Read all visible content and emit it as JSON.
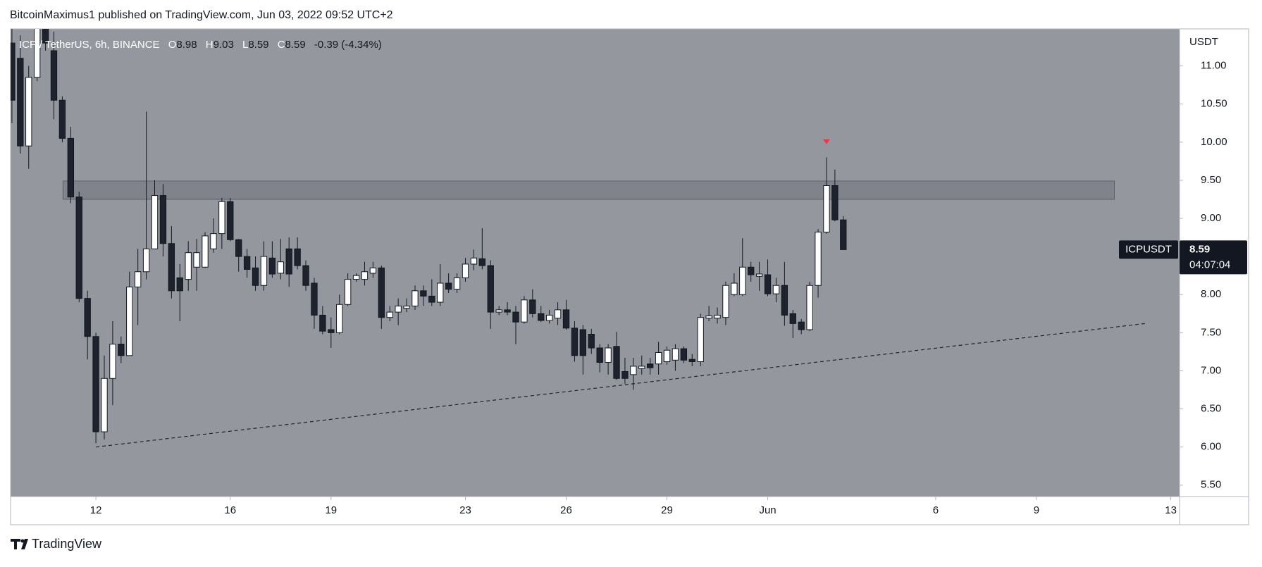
{
  "chart_data": {
    "type": "candlestick",
    "header": "BitcoinMaximus1 published on TradingView.com, Jun 03, 2022 09:52 UTC+2",
    "legend": {
      "symbol": "ICP / TetherUS, 6h, BINANCE",
      "items": [
        {
          "label": "O",
          "value": 8.98
        },
        {
          "label": "H",
          "value": 9.03
        },
        {
          "label": "L",
          "value": 8.59
        },
        {
          "label": "C",
          "value": 8.59
        }
      ],
      "change": "-0.39 (-4.34%)"
    },
    "y_axis_label": "USDT",
    "last_price": {
      "symbol": "ICPUSDT",
      "value": 8.59,
      "countdown": "04:07:04"
    },
    "footer": "TradingView",
    "up_color": "#ffffff",
    "down_color": "#1e222d",
    "x": [
      9.5,
      9.75,
      10,
      10.25,
      10.5,
      10.75,
      11,
      11.25,
      11.5,
      11.75,
      12,
      12.25,
      12.5,
      12.75,
      13,
      13.25,
      13.5,
      13.75,
      14,
      14.25,
      14.5,
      14.75,
      15,
      15.25,
      15.5,
      15.75,
      16,
      16.25,
      16.5,
      16.75,
      17,
      17.25,
      17.5,
      17.75,
      18,
      18.25,
      18.5,
      18.75,
      19,
      19.25,
      19.5,
      19.75,
      20,
      20.25,
      20.5,
      20.75,
      21,
      21.25,
      21.5,
      21.75,
      22,
      22.25,
      22.5,
      22.75,
      23,
      23.25,
      23.5,
      23.75,
      24,
      24.25,
      24.5,
      24.75,
      25,
      25.25,
      25.5,
      25.75,
      26,
      26.25,
      26.5,
      26.75,
      27,
      27.25,
      27.5,
      27.75,
      28,
      28.25,
      28.5,
      28.75,
      29,
      29.25,
      29.5,
      29.75,
      30,
      30.25,
      30.5,
      30.75,
      31,
      31.25,
      31.5,
      31.75,
      32,
      32.25,
      32.5,
      32.75,
      33,
      33.25,
      33.5,
      33.75,
      34,
      34.25
    ],
    "open": [
      11.3,
      11.1,
      9.95,
      10.85,
      11.6,
      11.2,
      10.55,
      10.05,
      9.28,
      7.95,
      7.45,
      6.2,
      6.9,
      7.35,
      7.2,
      8.1,
      8.3,
      8.6,
      9.3,
      8.67,
      8.22,
      8.2,
      8.36,
      8.36,
      8.6,
      8.8,
      9.22,
      8.72,
      8.5,
      8.35,
      8.12,
      8.48,
      8.28,
      8.6,
      8.6,
      8.38,
      8.15,
      7.73,
      7.54,
      7.5,
      7.87,
      8.2,
      8.2,
      8.28,
      8.35,
      7.7,
      7.77,
      7.82,
      7.85,
      8.05,
      7.98,
      7.9,
      8.15,
      8.07,
      8.22,
      8.4,
      8.47,
      8.38,
      7.77,
      7.8,
      7.77,
      7.64,
      7.93,
      7.75,
      7.66,
      7.69,
      7.8,
      7.56,
      7.54,
      7.48,
      7.3,
      7.11,
      7.32,
      6.99,
      6.95,
      7.03,
      7.09,
      7.09,
      7.12,
      7.14,
      7.29,
      7.15,
      7.12,
      7.69,
      7.69,
      7.7,
      8.0,
      8.0,
      8.36,
      8.24,
      8.26,
      8.01,
      8.12,
      7.75,
      7.64,
      7.54,
      8.12,
      8.82,
      9.43,
      8.98
    ],
    "high": [
      11.6,
      11.4,
      11.0,
      11.7,
      11.8,
      11.45,
      10.6,
      10.2,
      9.35,
      8.05,
      7.5,
      7.2,
      7.65,
      7.45,
      8.3,
      8.6,
      10.4,
      9.5,
      9.45,
      8.9,
      8.4,
      8.7,
      8.73,
      8.82,
      9.0,
      9.27,
      9.27,
      8.73,
      8.6,
      8.5,
      8.7,
      8.7,
      8.73,
      8.75,
      8.75,
      8.45,
      8.22,
      7.85,
      7.7,
      8.0,
      8.28,
      8.28,
      8.43,
      8.43,
      8.38,
      7.85,
      7.95,
      7.95,
      8.12,
      8.12,
      8.2,
      8.4,
      8.28,
      8.28,
      8.48,
      8.59,
      8.87,
      8.45,
      7.85,
      7.9,
      7.85,
      7.98,
      8.07,
      7.85,
      7.8,
      7.9,
      7.93,
      7.65,
      7.6,
      7.55,
      7.35,
      7.35,
      7.51,
      7.17,
      7.17,
      7.2,
      7.17,
      7.38,
      7.32,
      7.35,
      7.32,
      7.22,
      7.75,
      7.85,
      7.83,
      8.17,
      8.28,
      8.74,
      8.43,
      8.43,
      8.46,
      8.22,
      8.43,
      7.8,
      7.68,
      8.17,
      8.86,
      9.8,
      9.64,
      9.03
    ],
    "low": [
      10.25,
      9.85,
      9.65,
      10.8,
      11.2,
      10.3,
      10.0,
      9.2,
      7.9,
      7.15,
      6.05,
      6.1,
      6.55,
      7.1,
      7.2,
      7.6,
      8.2,
      8.6,
      8.5,
      7.95,
      7.65,
      8.05,
      8.05,
      8.35,
      8.55,
      8.6,
      8.7,
      8.3,
      8.22,
      8.05,
      8.05,
      8.22,
      8.2,
      8.1,
      8.33,
      8.05,
      7.55,
      7.48,
      7.3,
      7.48,
      7.85,
      8.17,
      8.12,
      8.22,
      7.55,
      7.65,
      7.6,
      7.77,
      7.8,
      7.85,
      7.85,
      7.85,
      8.02,
      8.02,
      8.17,
      8.32,
      8.33,
      7.55,
      7.73,
      7.73,
      7.35,
      7.62,
      7.7,
      7.64,
      7.62,
      7.6,
      7.54,
      7.12,
      6.95,
      7.22,
      6.98,
      6.95,
      6.88,
      6.83,
      6.75,
      6.95,
      6.95,
      6.95,
      7.08,
      7.0,
      7.1,
      7.06,
      7.06,
      7.65,
      7.62,
      7.6,
      7.98,
      7.98,
      8.17,
      8.05,
      7.98,
      7.9,
      7.59,
      7.43,
      7.48,
      7.52,
      7.96,
      8.8,
      8.96,
      8.59
    ],
    "close": [
      10.55,
      9.95,
      10.85,
      11.6,
      11.3,
      10.55,
      10.05,
      9.28,
      7.95,
      7.45,
      6.2,
      6.9,
      7.35,
      7.2,
      8.1,
      8.3,
      8.6,
      9.3,
      8.67,
      8.05,
      8.05,
      8.55,
      8.55,
      8.77,
      8.8,
      9.22,
      8.72,
      8.5,
      8.33,
      8.12,
      8.5,
      8.27,
      8.43,
      8.27,
      8.38,
      8.12,
      7.73,
      7.52,
      7.5,
      7.87,
      8.2,
      8.25,
      8.3,
      8.35,
      7.7,
      7.77,
      7.85,
      7.85,
      8.05,
      7.98,
      7.9,
      8.15,
      8.07,
      8.22,
      8.4,
      8.48,
      8.38,
      7.77,
      7.8,
      7.77,
      7.64,
      7.93,
      7.75,
      7.66,
      7.73,
      7.8,
      7.56,
      7.2,
      7.2,
      7.3,
      7.11,
      7.3,
      6.9,
      6.9,
      7.06,
      7.06,
      7.04,
      7.24,
      7.27,
      7.29,
      7.14,
      7.12,
      7.7,
      7.72,
      7.73,
      8.12,
      8.15,
      8.36,
      8.26,
      8.27,
      8.01,
      8.12,
      7.73,
      7.62,
      7.54,
      8.12,
      8.82,
      9.43,
      8.98,
      8.59
    ],
    "xlim": [
      9.46,
      44.26
    ],
    "xticks": [
      12,
      16,
      19,
      23,
      26,
      29,
      {
        "value": 32,
        "label": "Jun"
      },
      {
        "value": 37,
        "label": "6"
      },
      {
        "value": 40,
        "label": "9"
      },
      {
        "value": 44,
        "label": "13"
      }
    ],
    "ylim": [
      5.35,
      11.486
    ],
    "yticks": [
      {
        "value": 5.5,
        "label": "5.50"
      },
      {
        "value": 6,
        "label": "6.00"
      },
      {
        "value": 6.5,
        "label": "6.50"
      },
      {
        "value": 7,
        "label": "7.00"
      },
      {
        "value": 7.5,
        "label": "7.50"
      },
      {
        "value": 8,
        "label": "8.00"
      },
      {
        "value": 8.5,
        "label": "8.50"
      },
      {
        "value": 9,
        "label": "9.00"
      },
      {
        "value": 9.5,
        "label": "9.50"
      },
      {
        "value": 10,
        "label": "10.00"
      },
      {
        "value": 10.5,
        "label": "10.50"
      },
      {
        "value": 11,
        "label": "11.00"
      }
    ],
    "grid": false,
    "zone": {
      "x": [
        11.02,
        42.32
      ],
      "y": [
        9.25,
        9.49
      ],
      "color": "#6f727b"
    },
    "trendline": {
      "x": [
        12,
        43.23
      ],
      "y": [
        6.0,
        7.62
      ],
      "color": "#1e222d"
    },
    "signal_marker": {
      "x": 33.75,
      "y": 10.0,
      "color": "#f23645"
    }
  }
}
